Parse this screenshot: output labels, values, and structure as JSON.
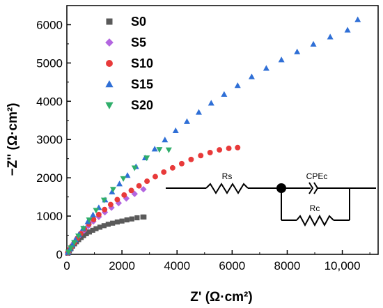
{
  "chart_data": {
    "type": "scatter",
    "xlabel": "Z' (Ω·cm²)",
    "ylabel": "−Z'' (Ω·cm²)",
    "xlim": [
      0,
      11300
    ],
    "ylim": [
      0,
      6500
    ],
    "x_ticks": [
      0,
      2000,
      4000,
      6000,
      8000,
      10000
    ],
    "x_tick_labels": [
      "0",
      "2000",
      "4000",
      "6000",
      "8000",
      "10,000"
    ],
    "y_ticks": [
      0,
      1000,
      2000,
      3000,
      4000,
      5000,
      6000
    ],
    "y_tick_labels": [
      "0",
      "1000",
      "2000",
      "3000",
      "4000",
      "5000",
      "6000"
    ],
    "legend_position": "top-left",
    "series": [
      {
        "name": "S0",
        "marker": "square",
        "color": "#5a5a5a",
        "points": [
          [
            40,
            30
          ],
          [
            90,
            90
          ],
          [
            150,
            150
          ],
          [
            210,
            215
          ],
          [
            280,
            275
          ],
          [
            350,
            330
          ],
          [
            430,
            385
          ],
          [
            520,
            440
          ],
          [
            610,
            490
          ],
          [
            710,
            540
          ],
          [
            820,
            585
          ],
          [
            940,
            630
          ],
          [
            1060,
            670
          ],
          [
            1200,
            710
          ],
          [
            1350,
            750
          ],
          [
            1500,
            785
          ],
          [
            1660,
            815
          ],
          [
            1830,
            845
          ],
          [
            2000,
            870
          ],
          [
            2180,
            900
          ],
          [
            2360,
            925
          ],
          [
            2550,
            955
          ],
          [
            2760,
            975
          ],
          [
            2800,
            975
          ]
        ]
      },
      {
        "name": "S5",
        "marker": "diamond",
        "color": "#b366e0",
        "points": [
          [
            40,
            40
          ],
          [
            100,
            110
          ],
          [
            170,
            200
          ],
          [
            260,
            300
          ],
          [
            360,
            400
          ],
          [
            480,
            510
          ],
          [
            620,
            620
          ],
          [
            780,
            740
          ],
          [
            960,
            860
          ],
          [
            1160,
            980
          ],
          [
            1380,
            1100
          ],
          [
            1620,
            1220
          ],
          [
            1880,
            1340
          ],
          [
            2160,
            1460
          ],
          [
            2460,
            1580
          ],
          [
            2780,
            1700
          ]
        ]
      },
      {
        "name": "S10",
        "marker": "circle",
        "color": "#e83a3a",
        "points": [
          [
            40,
            45
          ],
          [
            100,
            120
          ],
          [
            180,
            210
          ],
          [
            270,
            310
          ],
          [
            380,
            420
          ],
          [
            500,
            540
          ],
          [
            640,
            660
          ],
          [
            800,
            790
          ],
          [
            970,
            910
          ],
          [
            1160,
            1040
          ],
          [
            1370,
            1170
          ],
          [
            1590,
            1300
          ],
          [
            1830,
            1430
          ],
          [
            2080,
            1550
          ],
          [
            2340,
            1670
          ],
          [
            2620,
            1790
          ],
          [
            2910,
            1910
          ],
          [
            3210,
            2030
          ],
          [
            3520,
            2150
          ],
          [
            3840,
            2260
          ],
          [
            4170,
            2370
          ],
          [
            4510,
            2480
          ],
          [
            4860,
            2580
          ],
          [
            5200,
            2660
          ],
          [
            5540,
            2730
          ],
          [
            5880,
            2770
          ],
          [
            6200,
            2790
          ]
        ]
      },
      {
        "name": "S15",
        "marker": "triangle-up",
        "color": "#2f6fd6",
        "points": [
          [
            40,
            50
          ],
          [
            110,
            140
          ],
          [
            200,
            250
          ],
          [
            310,
            380
          ],
          [
            440,
            520
          ],
          [
            590,
            680
          ],
          [
            760,
            850
          ],
          [
            950,
            1030
          ],
          [
            1160,
            1220
          ],
          [
            1390,
            1420
          ],
          [
            1640,
            1630
          ],
          [
            1910,
            1840
          ],
          [
            2200,
            2060
          ],
          [
            2510,
            2290
          ],
          [
            2840,
            2520
          ],
          [
            3190,
            2750
          ],
          [
            3560,
            2990
          ],
          [
            3950,
            3230
          ],
          [
            4360,
            3470
          ],
          [
            4790,
            3710
          ],
          [
            5240,
            3950
          ],
          [
            5710,
            4180
          ],
          [
            6200,
            4410
          ],
          [
            6710,
            4640
          ],
          [
            7240,
            4860
          ],
          [
            7790,
            5080
          ],
          [
            8360,
            5290
          ],
          [
            8950,
            5490
          ],
          [
            9560,
            5680
          ],
          [
            10190,
            5860
          ],
          [
            10560,
            6130
          ]
        ]
      },
      {
        "name": "S20",
        "marker": "triangle-down",
        "color": "#2fae6a",
        "points": [
          [
            60,
            60
          ],
          [
            150,
            170
          ],
          [
            270,
            310
          ],
          [
            420,
            480
          ],
          [
            600,
            680
          ],
          [
            810,
            900
          ],
          [
            1060,
            1150
          ],
          [
            1350,
            1420
          ],
          [
            1680,
            1700
          ],
          [
            2050,
            1980
          ],
          [
            2460,
            2260
          ],
          [
            2900,
            2520
          ],
          [
            3360,
            2740
          ],
          [
            3700,
            2730
          ]
        ]
      }
    ]
  },
  "circuit": {
    "labels": {
      "rs": "Rs",
      "cpe": "CPEc",
      "rc": "Rc"
    }
  }
}
